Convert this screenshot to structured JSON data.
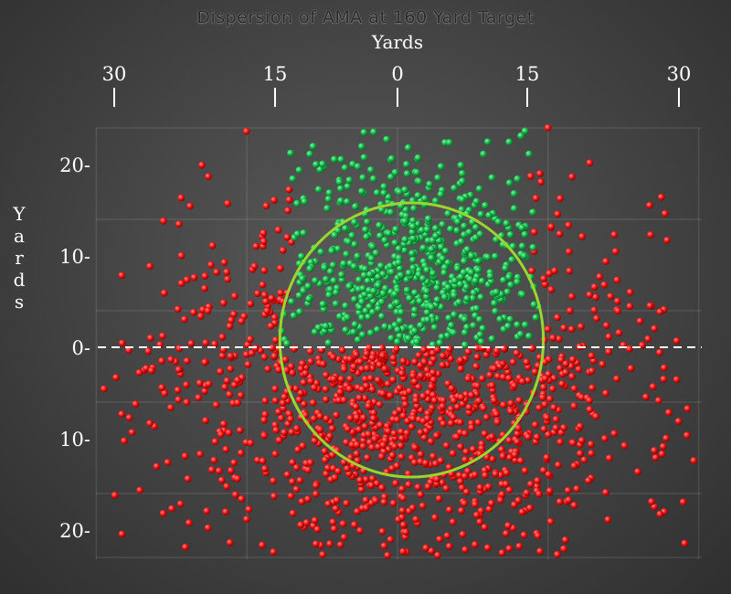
{
  "chart_data": {
    "type": "scatter",
    "title": "Dispersion of AMA at 160 Yard Target",
    "xlabel": "Yards",
    "ylabel": "Yards",
    "x_tick_labels": [
      "30",
      "15",
      "0",
      "15",
      "30"
    ],
    "x_tick_values": [
      -30,
      -15,
      0,
      15,
      30
    ],
    "y_tick_labels": [
      "20-",
      "10-",
      "0-",
      "10-",
      "20-"
    ],
    "y_tick_values": [
      20,
      10,
      0,
      -10,
      -20
    ],
    "xlim": [
      -31,
      31
    ],
    "ylim": [
      -23,
      25
    ],
    "grid": true,
    "target_circle": {
      "center_x": 1.5,
      "center_y": 0.8,
      "radius_x": 14,
      "radius_y": 15
    },
    "reference_line_y": 0,
    "series": [
      {
        "color": "#16b048",
        "count": 650
      },
      {
        "color": "#ee1111",
        "count": 1150
      }
    ]
  }
}
